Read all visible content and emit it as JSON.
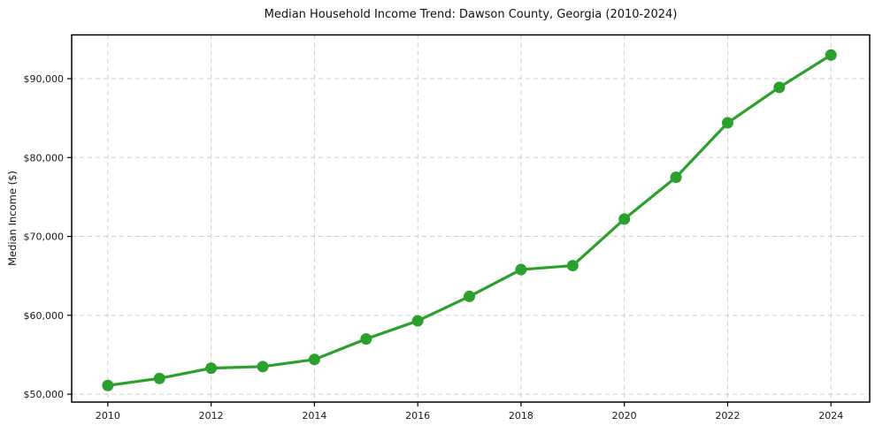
{
  "chart_data": {
    "type": "line",
    "title": "Median Household Income Trend: Dawson County, Georgia (2010-2024)",
    "xlabel": "",
    "ylabel": "Median Income ($)",
    "series_name": "Median household income",
    "x": [
      2010,
      2011,
      2012,
      2013,
      2014,
      2015,
      2016,
      2017,
      2018,
      2019,
      2020,
      2021,
      2022,
      2023,
      2024
    ],
    "values": [
      51100,
      52000,
      53300,
      53500,
      54400,
      57000,
      59300,
      62400,
      65800,
      66300,
      72200,
      77500,
      84400,
      88900,
      93000
    ],
    "xlim": [
      2009.3,
      2024.75
    ],
    "ylim": [
      49000,
      95550
    ],
    "xticks": [
      2010,
      2012,
      2014,
      2016,
      2018,
      2020,
      2022,
      2024
    ],
    "xtick_labels": [
      "2010",
      "2012",
      "2014",
      "2016",
      "2018",
      "2020",
      "2022",
      "2024"
    ],
    "yticks": [
      50000,
      60000,
      70000,
      80000,
      90000
    ],
    "ytick_labels": [
      "$50,000",
      "$60,000",
      "$70,000",
      "$80,000",
      "$90,000"
    ],
    "grid": true,
    "grid_style": "dashed",
    "legend": "none",
    "line_color": "#2ca02c",
    "marker_color": "#2ca02c",
    "marker": "circle",
    "background_color": "#ffffff",
    "grid_color": "#cdcdcd",
    "axis_color": "#000000"
  }
}
